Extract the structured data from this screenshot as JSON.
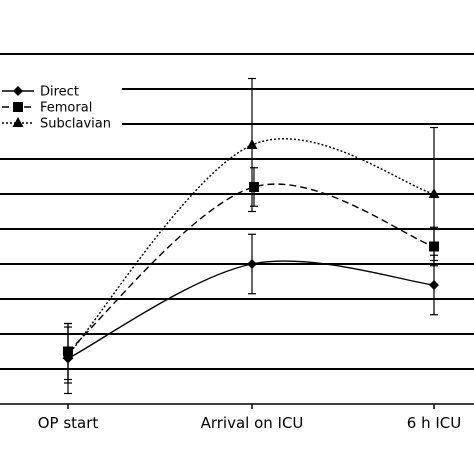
{
  "chart_data": {
    "type": "line",
    "title": "",
    "xlabel": "",
    "ylabel": "",
    "categories": [
      "OP start",
      "Arrival on ICU",
      "6 h ICU"
    ],
    "ylim": [
      0,
      10
    ],
    "gridlines": [
      1,
      2,
      3,
      4,
      5,
      6,
      7,
      8,
      9,
      10
    ],
    "grid": true,
    "legend_position": "top-left",
    "series": [
      {
        "name": "Direct",
        "marker": "diamond",
        "dash": "solid",
        "values": [
          1.3,
          4.0,
          3.4
        ],
        "err": [
          1.0,
          0.85,
          0.85
        ]
      },
      {
        "name": "Femoral",
        "marker": "square",
        "dash": "dashed",
        "values": [
          1.5,
          6.2,
          4.5
        ],
        "err": [
          0.8,
          0.55,
          0.55
        ]
      },
      {
        "name": "Subclavian",
        "marker": "triangle",
        "dash": "dotted",
        "values": [
          1.4,
          7.4,
          6.0
        ],
        "err": [
          0.8,
          1.9,
          1.9
        ]
      }
    ]
  }
}
